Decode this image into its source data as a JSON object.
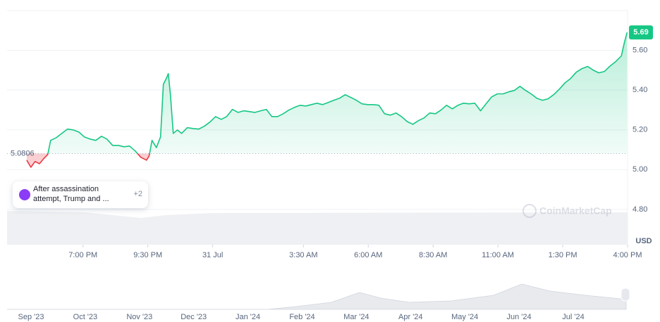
{
  "chart_data": {
    "type": "line",
    "color_up": "#16c784",
    "color_down": "#ea3943",
    "baseline": 5.0806,
    "current_price": 5.69,
    "y_unit": "USD",
    "watermark": "CoinMarketCap",
    "ylim": [
      4.623,
      5.8
    ],
    "yticks": [
      {
        "value": 4.8,
        "label": "4.80"
      },
      {
        "value": 5.0,
        "label": "5.00"
      },
      {
        "value": 5.2,
        "label": "5.20"
      },
      {
        "value": 5.4,
        "label": "5.40"
      },
      {
        "value": 5.6,
        "label": "5.60"
      }
    ],
    "xlim": [
      -7.93,
      16.0
    ],
    "xticks": [
      {
        "value": -5,
        "label": "7:00 PM"
      },
      {
        "value": -2.5,
        "label": "9:30 PM"
      },
      {
        "value": 0,
        "label": "31 Jul"
      },
      {
        "value": 3.5,
        "label": "3:30 AM"
      },
      {
        "value": 6,
        "label": "6:00 AM"
      },
      {
        "value": 8.5,
        "label": "8:30 AM"
      },
      {
        "value": 11,
        "label": "11:00 AM"
      },
      {
        "value": 13.5,
        "label": "1:30 PM"
      },
      {
        "value": 16,
        "label": "4:00 PM"
      }
    ],
    "x": [
      -7.17,
      -7.01,
      -6.85,
      -6.68,
      -6.52,
      -6.36,
      -6.25,
      -6.03,
      -5.82,
      -5.6,
      -5.38,
      -5.16,
      -4.95,
      -4.73,
      -4.51,
      -4.29,
      -4.08,
      -3.86,
      -3.64,
      -3.42,
      -3.21,
      -2.99,
      -2.77,
      -2.55,
      -2.45,
      -2.34,
      -2.17,
      -2.01,
      -1.9,
      -1.79,
      -1.71,
      -1.63,
      -1.52,
      -1.36,
      -1.2,
      -0.98,
      -0.76,
      -0.54,
      -0.33,
      -0.11,
      0.11,
      0.33,
      0.54,
      0.76,
      0.98,
      1.2,
      1.41,
      1.63,
      1.85,
      2.07,
      2.28,
      2.5,
      2.72,
      2.93,
      3.15,
      3.37,
      3.59,
      3.8,
      4.02,
      4.24,
      4.46,
      4.67,
      4.89,
      5.11,
      5.33,
      5.54,
      5.76,
      5.98,
      6.2,
      6.41,
      6.63,
      6.85,
      7.07,
      7.28,
      7.5,
      7.72,
      7.93,
      8.15,
      8.37,
      8.59,
      8.8,
      9.02,
      9.24,
      9.46,
      9.67,
      9.89,
      10.11,
      10.33,
      10.54,
      10.76,
      10.98,
      11.2,
      11.41,
      11.63,
      11.85,
      12.07,
      12.28,
      12.5,
      12.72,
      12.93,
      13.15,
      13.37,
      13.59,
      13.8,
      14.02,
      14.24,
      14.46,
      14.67,
      14.89,
      15.11,
      15.33,
      15.54,
      15.76,
      15.87,
      15.98
    ],
    "values": [
      5.048,
      5.012,
      5.041,
      5.03,
      5.055,
      5.076,
      5.147,
      5.161,
      5.182,
      5.204,
      5.2,
      5.189,
      5.165,
      5.154,
      5.147,
      5.168,
      5.154,
      5.122,
      5.122,
      5.115,
      5.119,
      5.094,
      5.062,
      5.048,
      5.069,
      5.147,
      5.111,
      5.165,
      5.43,
      5.458,
      5.483,
      5.377,
      5.182,
      5.2,
      5.182,
      5.211,
      5.207,
      5.204,
      5.218,
      5.239,
      5.267,
      5.253,
      5.267,
      5.303,
      5.288,
      5.296,
      5.292,
      5.288,
      5.296,
      5.303,
      5.267,
      5.267,
      5.281,
      5.299,
      5.313,
      5.324,
      5.32,
      5.327,
      5.334,
      5.327,
      5.338,
      5.349,
      5.359,
      5.377,
      5.363,
      5.349,
      5.331,
      5.327,
      5.327,
      5.324,
      5.281,
      5.274,
      5.285,
      5.267,
      5.242,
      5.228,
      5.246,
      5.26,
      5.285,
      5.281,
      5.299,
      5.324,
      5.306,
      5.324,
      5.334,
      5.331,
      5.334,
      5.296,
      5.331,
      5.366,
      5.381,
      5.381,
      5.391,
      5.398,
      5.419,
      5.398,
      5.381,
      5.359,
      5.349,
      5.356,
      5.377,
      5.405,
      5.437,
      5.458,
      5.49,
      5.508,
      5.519,
      5.501,
      5.487,
      5.494,
      5.522,
      5.543,
      5.572,
      5.635,
      5.69
    ],
    "event": {
      "text": "After assassination attempt, Trump and ...",
      "count": "+2"
    },
    "navigator": {
      "labels": [
        "Sep '23",
        "Oct '23",
        "Nov '23",
        "Dec '23",
        "Jan '24",
        "Feb '24",
        "Mar '24",
        "Apr '24",
        "May '24",
        "Jun '24",
        "Jul '24"
      ]
    }
  }
}
